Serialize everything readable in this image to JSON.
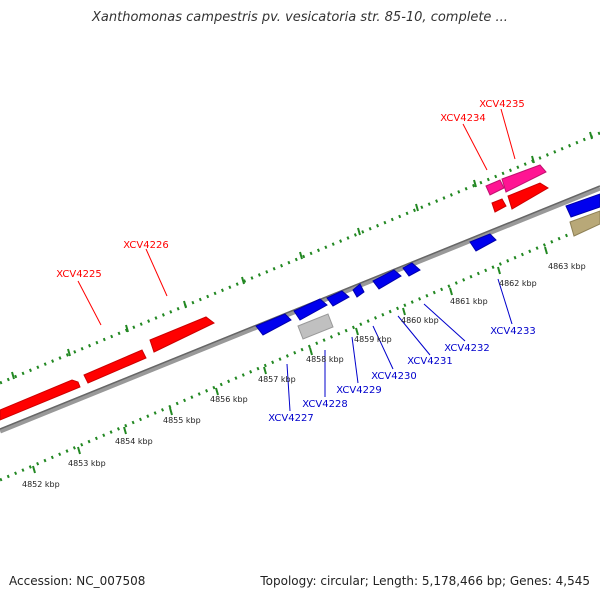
{
  "title": "Xanthomonas campestris pv. vesicatoria str. 85-10, complete ...",
  "footer": {
    "accession": "Accession: NC_007508",
    "summary": "Topology: circular; Length: 5,178,466 bp; Genes: 4,545"
  },
  "colors": {
    "forward_gene": "#ff0000",
    "reverse_gene": "#0000ee",
    "highlight_gene": "#ff1493",
    "pseudo_gene": "#c0c0c0",
    "other_gene": "#b8a878",
    "backbone": "#888888",
    "ticks": "#228822",
    "forward_label": "#ff0000",
    "reverse_label": "#0000cc"
  },
  "scale_labels": [
    "4852 kbp",
    "4853 kbp",
    "4854 kbp",
    "4855 kbp",
    "4856 kbp",
    "4857 kbp",
    "4858 kbp",
    "4859 kbp",
    "4860 kbp",
    "4861 kbp",
    "4862 kbp",
    "4863 kbp"
  ],
  "forward_gene_labels": [
    "XCV4225",
    "XCV4226",
    "XCV4234",
    "XCV4235"
  ],
  "reverse_gene_labels": [
    "XCV4227",
    "XCV4228",
    "XCV4229",
    "XCV4230",
    "XCV4231",
    "XCV4232",
    "XCV4233"
  ]
}
